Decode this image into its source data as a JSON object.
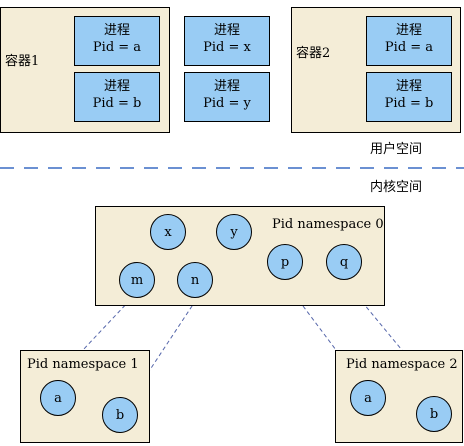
{
  "user_space": {
    "label": "用户空间",
    "container1": {
      "label": "容器1",
      "processes": [
        {
          "title": "进程",
          "pid": "Pid = a"
        },
        {
          "title": "进程",
          "pid": "Pid = b"
        }
      ]
    },
    "host_processes": [
      {
        "title": "进程",
        "pid": "Pid = x"
      },
      {
        "title": "进程",
        "pid": "Pid = y"
      }
    ],
    "container2": {
      "label": "容器2",
      "processes": [
        {
          "title": "进程",
          "pid": "Pid = a"
        },
        {
          "title": "进程",
          "pid": "Pid = b"
        }
      ]
    }
  },
  "kernel_space": {
    "label": "内核空间",
    "ns0": {
      "label": "Pid namespace 0",
      "nodes": [
        "x",
        "y",
        "m",
        "n",
        "p",
        "q"
      ]
    },
    "ns1": {
      "label": "Pid namespace 1",
      "nodes": [
        "a",
        "b"
      ]
    },
    "ns2": {
      "label": "Pid namespace 2",
      "nodes": [
        "a",
        "b"
      ]
    }
  },
  "colors": {
    "container_fill": "#f4edd7",
    "process_fill": "#99ccf4",
    "divider": "#3a6bc4",
    "link": "#5566aa"
  }
}
